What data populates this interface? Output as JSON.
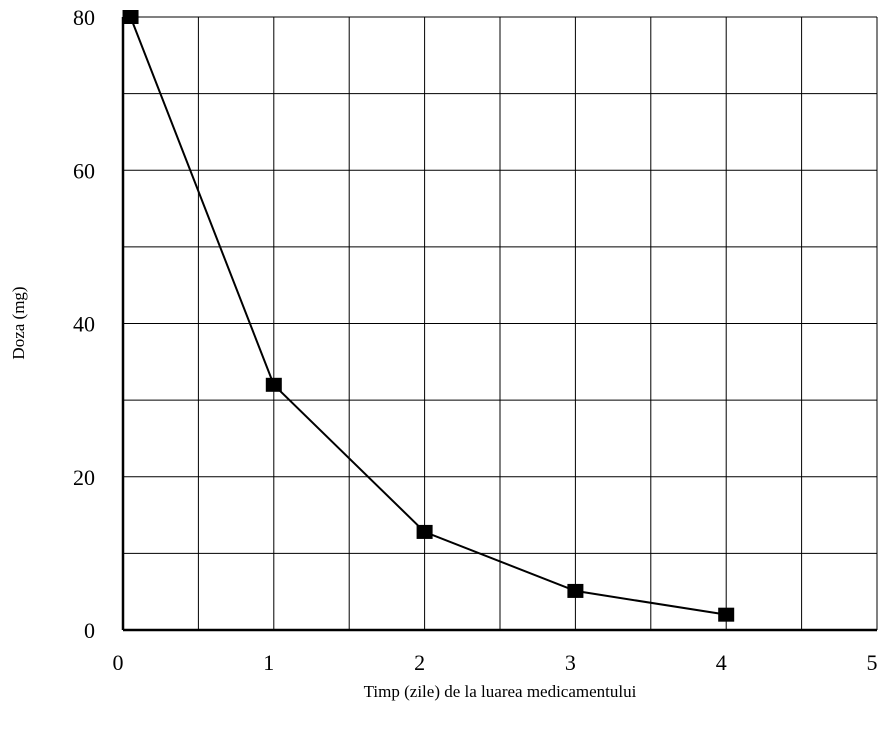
{
  "chart_data": {
    "type": "line",
    "xlabel": "Timp (zile) de la luarea medicamentului",
    "ylabel": "Doza (mg)",
    "x": [
      0.05,
      1,
      2,
      3,
      4
    ],
    "series": [
      {
        "color": "#000000",
        "values": [
          80,
          32,
          12.8,
          5.1,
          2
        ]
      }
    ],
    "xlim": [
      0,
      5
    ],
    "xticks": [
      0,
      1,
      2,
      3,
      4,
      5
    ],
    "xminor": [
      0.5,
      1.5,
      2.5,
      3.5,
      4.5
    ],
    "ylim": [
      0,
      80
    ],
    "yticks": [
      0,
      20,
      40,
      60,
      80
    ],
    "yminor": [
      10,
      30,
      50,
      70
    ],
    "grid": true
  }
}
